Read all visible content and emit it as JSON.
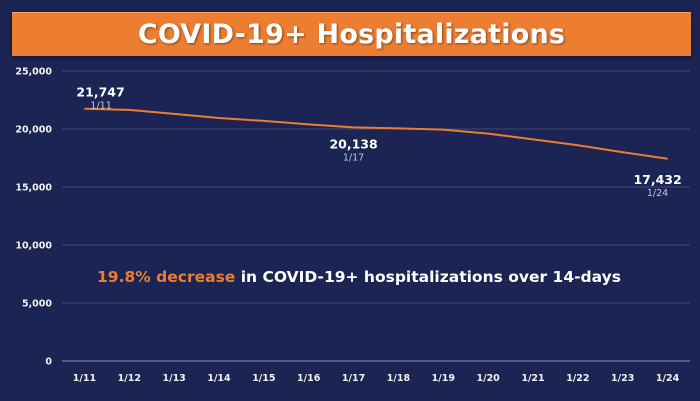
{
  "title": "COVID-19+ Hospitalizations",
  "callout": {
    "highlight": "19.8% decrease",
    "rest": " in COVID-19+ hospitalizations over 14-days"
  },
  "annotations": [
    {
      "value": "21,747",
      "date": "1/11"
    },
    {
      "value": "20,138",
      "date": "1/17"
    },
    {
      "value": "17,432",
      "date": "1/24"
    }
  ],
  "colors": {
    "background": "#1b2452",
    "title_bar": "#ec7d31",
    "line": "#ec7d31",
    "text": "#ffffff"
  },
  "chart_data": {
    "type": "line",
    "title": "COVID-19+ Hospitalizations",
    "xlabel": "",
    "ylabel": "",
    "categories": [
      "1/11",
      "1/12",
      "1/13",
      "1/14",
      "1/15",
      "1/16",
      "1/17",
      "1/18",
      "1/19",
      "1/20",
      "1/21",
      "1/22",
      "1/23",
      "1/24"
    ],
    "series": [
      {
        "values": [
          21747,
          21650,
          21300,
          20950,
          20700,
          20400,
          20138,
          20050,
          19950,
          19600,
          19100,
          18600,
          18000,
          17432
        ]
      }
    ],
    "ylim": [
      0,
      25000
    ],
    "yticks": [
      0,
      5000,
      10000,
      15000,
      20000,
      25000
    ],
    "ytick_labels": [
      "0",
      "5,000",
      "10,000",
      "15,000",
      "20,000",
      "25,000"
    ],
    "grid": true
  }
}
